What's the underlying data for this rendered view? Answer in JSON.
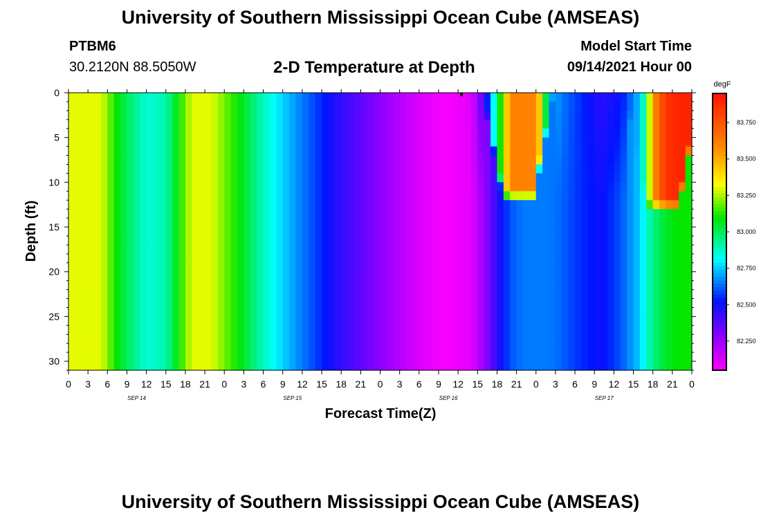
{
  "header": {
    "title_top": "University of Southern Mississippi Ocean Cube (AMSEAS)",
    "title_bottom": "University of Southern Mississippi Ocean Cube (AMSEAS)",
    "station_id": "PTBM6",
    "station_location": "30.2120N  88.5050W",
    "plot_title": "2-D Temperature at Depth",
    "model_start_label": "Model Start Time",
    "model_start_value": "09/14/2021 Hour 00"
  },
  "chart_data": {
    "type": "heatmap",
    "title": "2-D Temperature at Depth",
    "xlabel": "Forecast Time(Z)",
    "ylabel": "Depth (ft)",
    "x_range_hours": [
      0,
      96
    ],
    "y_range_ft": [
      0,
      31
    ],
    "x_tick_labels": [
      "0",
      "3",
      "6",
      "9",
      "12",
      "15",
      "18",
      "21",
      "0",
      "3",
      "6",
      "9",
      "12",
      "15",
      "18",
      "21",
      "0",
      "3",
      "6",
      "9",
      "12",
      "15",
      "18",
      "21",
      "0",
      "3",
      "6",
      "9",
      "12",
      "15",
      "18",
      "21",
      "0"
    ],
    "date_labels": [
      {
        "hour": 10.5,
        "label": "SEP 14"
      },
      {
        "hour": 34.5,
        "label": "SEP 15"
      },
      {
        "hour": 58.5,
        "label": "SEP 16"
      },
      {
        "hour": 82.5,
        "label": "SEP 17"
      }
    ],
    "y_tick_labels": [
      "0",
      "5",
      "10",
      "15",
      "20",
      "25",
      "30"
    ],
    "y_ticks": [
      0,
      5,
      10,
      15,
      20,
      25,
      30
    ],
    "colorbar": {
      "unit": "degF",
      "min": 82.05,
      "max": 83.95,
      "tick_values": [
        82.25,
        82.5,
        82.75,
        83.0,
        83.25,
        83.5,
        83.75
      ],
      "tick_labels": [
        "82.250",
        "82.500",
        "82.750",
        "83.000",
        "83.250",
        "83.500",
        "83.750"
      ]
    },
    "surface_temperature_profile": {
      "hours": [
        0,
        5,
        8,
        12,
        15,
        17,
        19,
        22,
        24,
        27,
        30,
        34,
        38,
        42,
        46,
        50,
        54,
        58,
        62,
        64,
        66,
        68,
        70,
        72,
        73,
        74,
        76,
        79,
        82,
        85,
        88,
        89,
        90,
        92,
        94,
        96
      ],
      "temps_degF": [
        83.3,
        83.3,
        83.05,
        82.85,
        82.9,
        83.1,
        83.3,
        83.3,
        83.2,
        83.05,
        82.88,
        82.72,
        82.58,
        82.44,
        82.33,
        82.22,
        82.12,
        82.06,
        82.1,
        82.4,
        82.95,
        83.6,
        83.6,
        83.6,
        83.3,
        82.75,
        82.65,
        82.55,
        82.45,
        82.5,
        82.75,
        83.0,
        83.55,
        83.85,
        83.9,
        83.9
      ]
    },
    "deep_temperature_profile": {
      "hours": [
        0,
        5,
        8,
        12,
        15,
        17,
        19,
        22,
        24,
        27,
        30,
        34,
        38,
        42,
        46,
        50,
        54,
        58,
        62,
        64,
        66,
        68,
        70,
        72,
        73,
        74,
        76,
        79,
        82,
        85,
        88,
        89,
        90,
        92,
        94,
        96
      ],
      "temps_degF": [
        83.3,
        83.3,
        83.05,
        82.85,
        82.9,
        83.1,
        83.3,
        83.3,
        83.2,
        83.05,
        82.88,
        82.72,
        82.58,
        82.44,
        82.33,
        82.22,
        82.12,
        82.06,
        82.1,
        82.25,
        82.45,
        82.6,
        82.65,
        82.65,
        82.65,
        82.65,
        82.62,
        82.55,
        82.5,
        82.6,
        82.75,
        82.85,
        82.95,
        83.05,
        83.1,
        83.1
      ]
    },
    "warm_layer_events": [
      {
        "start_hour": 65,
        "end_hour": 73.5,
        "bottom_depth_ft": 11,
        "temp_degF": 83.6
      },
      {
        "start_hour": 87,
        "end_hour": 96,
        "bottom_depth_ft": 12,
        "temp_degF": 83.85
      }
    ]
  }
}
